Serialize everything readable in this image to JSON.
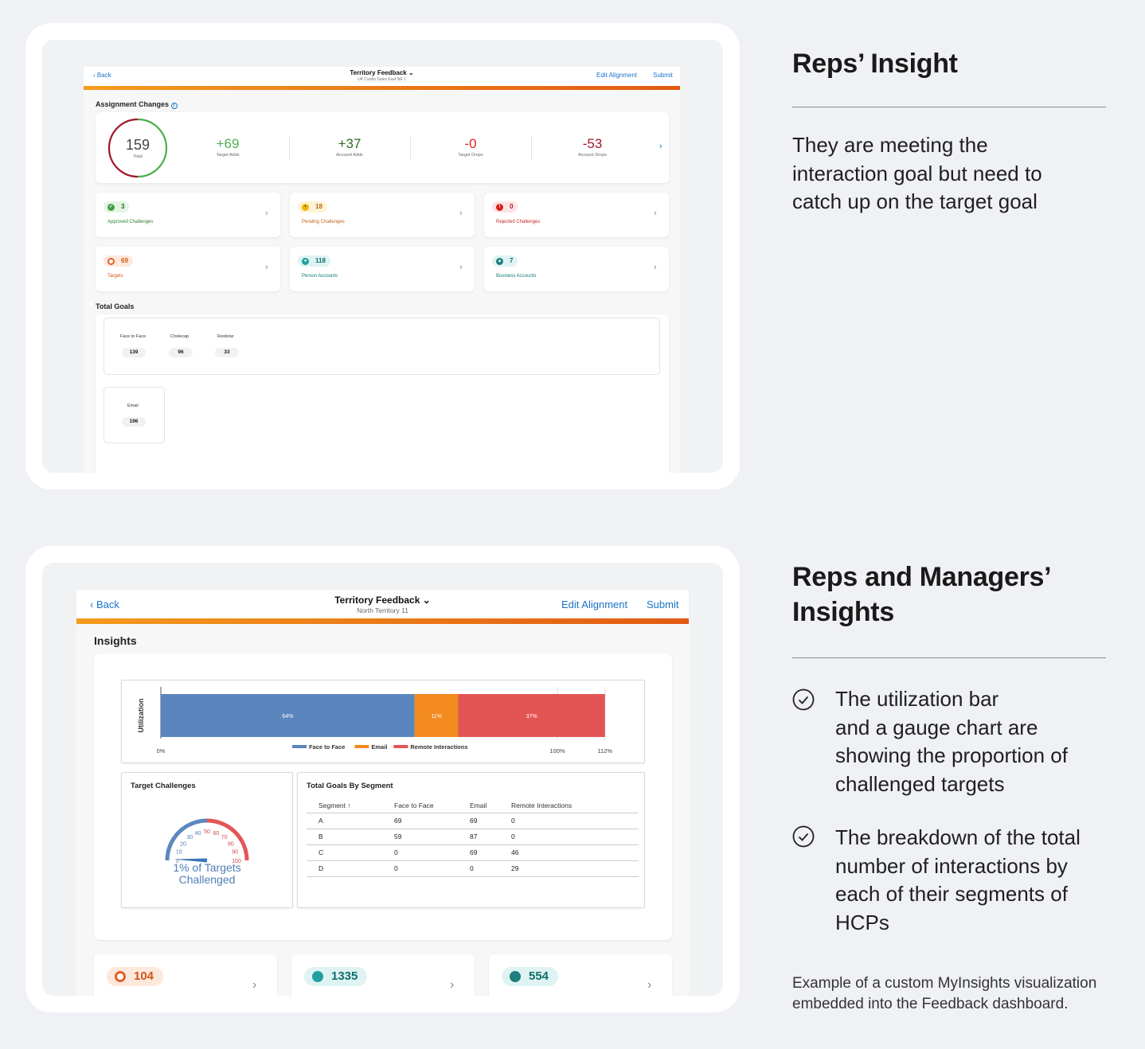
{
  "top_screen": {
    "header": {
      "back": "Back",
      "title": "Territory Feedback ⌄",
      "subtitle": "UK Cardio Sales East NE 1",
      "edit": "Edit Alignment",
      "submit": "Submit"
    },
    "assignment_title": "Assignment Changes",
    "total": {
      "value": "159",
      "label": "Total"
    },
    "stats": [
      {
        "value": "+69",
        "label": "Target Adds",
        "color": "#4caf50"
      },
      {
        "value": "+37",
        "label": "Account Adds",
        "color": "#2e6b1f"
      },
      {
        "value": "-0",
        "label": "Target Drops",
        "color": "#e02020"
      },
      {
        "value": "-53",
        "label": "Account Drops",
        "color": "#a0182e"
      }
    ],
    "tiles": [
      {
        "count": "3",
        "label": "Approved Challenges"
      },
      {
        "count": "18",
        "label": "Pending Challenges"
      },
      {
        "count": "0",
        "label": "Rejected Challenges"
      },
      {
        "count": "69",
        "label": "Targets"
      },
      {
        "count": "118",
        "label": "Person Accounts"
      },
      {
        "count": "7",
        "label": "Business Accounts"
      }
    ],
    "goals_title": "Total Goals",
    "goals": [
      {
        "label": "Face to Face",
        "value": "139"
      },
      {
        "label": "Cholecap",
        "value": "96"
      },
      {
        "label": "Restolar",
        "value": "33"
      }
    ],
    "email_goal": {
      "label": "Email",
      "value": "196"
    }
  },
  "bottom_screen": {
    "header": {
      "back": "Back",
      "title": "Territory Feedback ⌄",
      "subtitle": "North Territory 11",
      "edit": "Edit Alignment",
      "submit": "Submit"
    },
    "insights_title": "Insights",
    "utilization": {
      "ylabel": "Utilization",
      "segments": [
        {
          "name": "Face to Face",
          "label": "64%",
          "value": 64,
          "color": "#5b86bd"
        },
        {
          "name": "Email",
          "label": "11%",
          "value": 11,
          "color": "#f28a1e"
        },
        {
          "name": "Remote Interactions",
          "label": "37%",
          "value": 37,
          "color": "#e35454"
        }
      ],
      "ticks": [
        "0%",
        "100%",
        "112%"
      ],
      "xmax": 112
    },
    "gauge": {
      "title": "Target Challenges",
      "ticks": [
        "0",
        "10",
        "20",
        "30",
        "40",
        "50",
        "60",
        "70",
        "80",
        "90",
        "100"
      ],
      "value": 1,
      "caption_1": "1% of Targets",
      "caption_2": "Challenged"
    },
    "segment_table": {
      "title": "Total Goals By Segment",
      "columns": [
        "Segment ↑",
        "Face to Face",
        "Email",
        "Remote Interactions"
      ],
      "rows": [
        [
          "A",
          "69",
          "69",
          "0"
        ],
        [
          "B",
          "59",
          "87",
          "0"
        ],
        [
          "C",
          "0",
          "69",
          "46"
        ],
        [
          "D",
          "0",
          "0",
          "29"
        ]
      ]
    },
    "bottom_tiles": [
      "104",
      "1335",
      "554"
    ]
  },
  "right": {
    "heading1": "Reps’ Insight",
    "text1_lines": [
      "They are meeting the",
      "interaction goal but need to",
      "catch up on the target goal"
    ],
    "heading2_line1": "Reps and Managers’",
    "heading2_line2": "Insights",
    "bullet1_lines": [
      "The utilization bar",
      "and a gauge chart are",
      "showing the proportion of",
      "challenged targets"
    ],
    "bullet2_lines": [
      "The breakdown of the total",
      "number of interactions by",
      "each of their segments of",
      "HCPs"
    ],
    "caption_lines": [
      "Example of a custom MyInsights visualization",
      "embedded into the Feedback dashboard."
    ]
  },
  "colors": {
    "link": "#1a73c8",
    "accent_gradient_start": "#f39b1d",
    "accent_gradient_end": "#e25a12"
  }
}
